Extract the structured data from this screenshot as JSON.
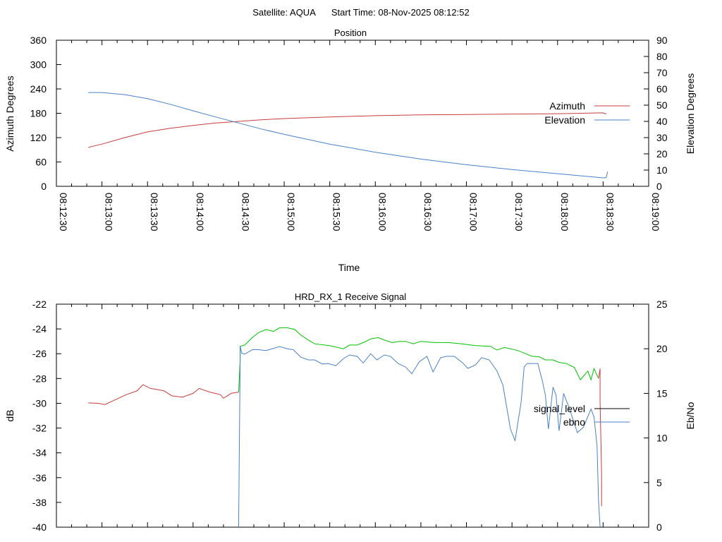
{
  "header": {
    "satellite": "Satellite: AQUA",
    "start_time": "Start Time: 08-Nov-2025 08:12:52"
  },
  "colors": {
    "red": "#c83c3c",
    "green": "#00c000",
    "blue": "#4a80c8",
    "black": "#000000"
  },
  "chart_data": [
    {
      "type": "line",
      "title": "Position",
      "xlabel": "Time",
      "ylabel": "Azimuth Degrees",
      "y2label": "Elevation Degrees",
      "xlim": [
        "08:12:30",
        "08:19:00"
      ],
      "xticks": [
        "08:12:30",
        "08:13:00",
        "08:13:30",
        "08:14:00",
        "08:14:30",
        "08:15:00",
        "08:15:30",
        "08:16:00",
        "08:16:30",
        "08:17:00",
        "08:17:30",
        "08:18:00",
        "08:18:30",
        "08:19:00"
      ],
      "ylim": [
        0,
        360
      ],
      "yticks": [
        0,
        60,
        120,
        180,
        240,
        300,
        360
      ],
      "y2lim": [
        0,
        90
      ],
      "y2ticks": [
        0,
        10,
        20,
        30,
        40,
        50,
        60,
        70,
        80,
        90
      ],
      "legend": "right",
      "series": [
        {
          "name": "Azimuth",
          "axis": "y",
          "color": "red",
          "points": [
            [
              "08:12:51",
              96
            ],
            [
              "08:13:00",
              104
            ],
            [
              "08:13:15",
              120
            ],
            [
              "08:13:30",
              134
            ],
            [
              "08:13:45",
              143
            ],
            [
              "08:14:00",
              150
            ],
            [
              "08:14:15",
              156
            ],
            [
              "08:14:30",
              160
            ],
            [
              "08:14:45",
              164
            ],
            [
              "08:15:00",
              167
            ],
            [
              "08:15:30",
              171
            ],
            [
              "08:16:00",
              174
            ],
            [
              "08:16:30",
              176
            ],
            [
              "08:17:00",
              177
            ],
            [
              "08:17:30",
              178
            ],
            [
              "08:18:00",
              179
            ],
            [
              "08:18:30",
              181
            ],
            [
              "08:18:32",
              178
            ]
          ]
        },
        {
          "name": "Elevation",
          "axis": "y2",
          "color": "blue",
          "points": [
            [
              "08:12:51",
              57.8
            ],
            [
              "08:13:00",
              57.8
            ],
            [
              "08:13:15",
              56.5
            ],
            [
              "08:13:30",
              54
            ],
            [
              "08:13:45",
              50.5
            ],
            [
              "08:14:00",
              46.5
            ],
            [
              "08:14:15",
              42.7
            ],
            [
              "08:14:30",
              39
            ],
            [
              "08:14:45",
              35.3
            ],
            [
              "08:15:00",
              32
            ],
            [
              "08:15:30",
              26
            ],
            [
              "08:16:00",
              21
            ],
            [
              "08:16:30",
              16.8
            ],
            [
              "08:17:00",
              13.3
            ],
            [
              "08:17:30",
              10.3
            ],
            [
              "08:18:00",
              7.8
            ],
            [
              "08:18:30",
              5.2
            ],
            [
              "08:18:32",
              5.4
            ],
            [
              "08:18:33",
              9
            ]
          ]
        }
      ]
    },
    {
      "type": "line",
      "title": "HRD_RX_1 Receive Signal",
      "xlabel": "",
      "ylabel": "dB",
      "y2label": "Eb/No",
      "xlim": [
        "08:12:30",
        "08:19:00"
      ],
      "ylim": [
        -40,
        -22
      ],
      "yticks": [
        -40,
        -38,
        -36,
        -34,
        -32,
        -30,
        -28,
        -26,
        -24,
        -22
      ],
      "y2lim": [
        0,
        25
      ],
      "y2ticks": [
        0,
        5,
        10,
        15,
        20,
        25
      ],
      "legend": "right",
      "series": [
        {
          "name": "signal_level",
          "axis": "y",
          "legend_color": "black",
          "segments": [
            {
              "color": "red",
              "points": [
                [
                  "08:12:51",
                  -29.97
                ],
                [
                  "08:12:57",
                  -30.0
                ],
                [
                  "08:13:02",
                  -30.1
                ],
                [
                  "08:13:09",
                  -29.7
                ],
                [
                  "08:13:16",
                  -29.3
                ],
                [
                  "08:13:23",
                  -29.0
                ],
                [
                  "08:13:27",
                  -28.5
                ],
                [
                  "08:13:32",
                  -28.8
                ],
                [
                  "08:13:37",
                  -28.9
                ],
                [
                  "08:13:41",
                  -29.0
                ],
                [
                  "08:13:46",
                  -29.4
                ],
                [
                  "08:13:53",
                  -29.5
                ],
                [
                  "08:14:00",
                  -29.2
                ],
                [
                  "08:14:04",
                  -28.8
                ],
                [
                  "08:14:11",
                  -29.1
                ],
                [
                  "08:14:18",
                  -29.3
                ],
                [
                  "08:14:20",
                  -29.6
                ],
                [
                  "08:14:25",
                  -29.2
                ],
                [
                  "08:14:30",
                  -29.1
                ]
              ]
            },
            {
              "color": "green",
              "points": [
                [
                  "08:14:30",
                  -29.1
                ],
                [
                  "08:14:31",
                  -26.5
                ],
                [
                  "08:14:31",
                  -25.4
                ],
                [
                  "08:14:34",
                  -25.3
                ],
                [
                  "08:14:39",
                  -24.7
                ],
                [
                  "08:14:43",
                  -24.3
                ],
                [
                  "08:14:48",
                  -24.05
                ],
                [
                  "08:14:53",
                  -24.2
                ],
                [
                  "08:14:57",
                  -23.9
                ],
                [
                  "08:15:02",
                  -23.9
                ],
                [
                  "08:15:07",
                  -24.05
                ],
                [
                  "08:15:11",
                  -24.5
                ],
                [
                  "08:15:16",
                  -24.9
                ],
                [
                  "08:15:20",
                  -25.2
                ],
                [
                  "08:15:30",
                  -25.35
                ],
                [
                  "08:15:39",
                  -25.6
                ],
                [
                  "08:15:43",
                  -25.3
                ],
                [
                  "08:15:48",
                  -25.3
                ],
                [
                  "08:15:53",
                  -25.05
                ],
                [
                  "08:15:57",
                  -24.8
                ],
                [
                  "08:16:02",
                  -24.7
                ],
                [
                  "08:16:06",
                  -24.9
                ],
                [
                  "08:16:11",
                  -25.1
                ],
                [
                  "08:16:16",
                  -25.0
                ],
                [
                  "08:16:20",
                  -25.0
                ],
                [
                  "08:16:25",
                  -25.2
                ],
                [
                  "08:16:30",
                  -25.0
                ],
                [
                  "08:16:39",
                  -25.1
                ],
                [
                  "08:16:48",
                  -25.1
                ],
                [
                  "08:16:57",
                  -25.2
                ],
                [
                  "08:17:06",
                  -25.35
                ],
                [
                  "08:17:16",
                  -25.4
                ],
                [
                  "08:17:20",
                  -25.7
                ],
                [
                  "08:17:25",
                  -25.5
                ],
                [
                  "08:17:29",
                  -25.6
                ],
                [
                  "08:17:34",
                  -25.75
                ],
                [
                  "08:17:39",
                  -26.0
                ],
                [
                  "08:17:43",
                  -26.2
                ],
                [
                  "08:17:48",
                  -26.25
                ],
                [
                  "08:17:52",
                  -26.5
                ],
                [
                  "08:17:57",
                  -26.5
                ],
                [
                  "08:18:01",
                  -26.7
                ],
                [
                  "08:18:06",
                  -26.8
                ],
                [
                  "08:18:11",
                  -27.1
                ],
                [
                  "08:18:15",
                  -28.1
                ],
                [
                  "08:18:20",
                  -27.4
                ],
                [
                  "08:18:22",
                  -28.1
                ],
                [
                  "08:18:24",
                  -27.2
                ],
                [
                  "08:18:27",
                  -28.0
                ]
              ]
            },
            {
              "color": "red",
              "points": [
                [
                  "08:18:27",
                  -28.0
                ],
                [
                  "08:18:28",
                  -27.2
                ],
                [
                  "08:18:28",
                  -29.9
                ],
                [
                  "08:18:29",
                  -35.6
                ],
                [
                  "08:18:29",
                  -38.3
                ]
              ]
            }
          ]
        },
        {
          "name": "ebno",
          "axis": "y2",
          "color": "blue",
          "points": [
            [
              "08:14:30",
              0
            ],
            [
              "08:14:30",
              0.6
            ],
            [
              "08:14:31",
              18.75
            ],
            [
              "08:14:31",
              20.3
            ],
            [
              "08:14:32",
              19.5
            ],
            [
              "08:14:34",
              19.4
            ],
            [
              "08:14:39",
              19.9
            ],
            [
              "08:14:43",
              19.9
            ],
            [
              "08:14:48",
              19.8
            ],
            [
              "08:14:53",
              20.05
            ],
            [
              "08:14:57",
              20.25
            ],
            [
              "08:15:02",
              20.0
            ],
            [
              "08:15:06",
              19.9
            ],
            [
              "08:15:11",
              19.05
            ],
            [
              "08:15:16",
              18.75
            ],
            [
              "08:15:20",
              18.75
            ],
            [
              "08:15:25",
              18.3
            ],
            [
              "08:15:29",
              18.35
            ],
            [
              "08:15:34",
              18.1
            ],
            [
              "08:15:39",
              18.9
            ],
            [
              "08:15:43",
              19.3
            ],
            [
              "08:15:48",
              19.15
            ],
            [
              "08:15:52",
              18.4
            ],
            [
              "08:15:57",
              19.45
            ],
            [
              "08:16:01",
              18.75
            ],
            [
              "08:16:06",
              19.3
            ],
            [
              "08:16:10",
              19.15
            ],
            [
              "08:16:15",
              18.35
            ],
            [
              "08:16:20",
              17.95
            ],
            [
              "08:16:24",
              17.2
            ],
            [
              "08:16:29",
              18.55
            ],
            [
              "08:16:34",
              19.15
            ],
            [
              "08:16:38",
              17.4
            ],
            [
              "08:16:43",
              19.0
            ],
            [
              "08:16:47",
              19.15
            ],
            [
              "08:16:52",
              19.15
            ],
            [
              "08:16:57",
              18.5
            ],
            [
              "08:17:01",
              17.8
            ],
            [
              "08:17:06",
              18.2
            ],
            [
              "08:17:10",
              19.0
            ],
            [
              "08:17:15",
              18.75
            ],
            [
              "08:17:20",
              17.55
            ],
            [
              "08:17:24",
              15.95
            ],
            [
              "08:17:29",
              11.0
            ],
            [
              "08:17:32",
              9.7
            ],
            [
              "08:17:36",
              14.0
            ],
            [
              "08:17:38",
              17.95
            ],
            [
              "08:17:40",
              18.35
            ],
            [
              "08:17:47",
              18.35
            ],
            [
              "08:17:50",
              16.4
            ],
            [
              "08:17:52",
              14.8
            ],
            [
              "08:17:54",
              11.0
            ],
            [
              "08:17:57",
              15.7
            ],
            [
              "08:17:59",
              14.8
            ],
            [
              "08:18:01",
              10.8
            ],
            [
              "08:18:04",
              15.0
            ],
            [
              "08:18:08",
              13.2
            ],
            [
              "08:18:13",
              10.6
            ],
            [
              "08:18:17",
              11.2
            ],
            [
              "08:18:22",
              13.25
            ],
            [
              "08:18:24",
              12.35
            ],
            [
              "08:18:26",
              9.1
            ],
            [
              "08:18:27",
              2.9
            ],
            [
              "08:18:28",
              0
            ]
          ]
        }
      ]
    }
  ]
}
